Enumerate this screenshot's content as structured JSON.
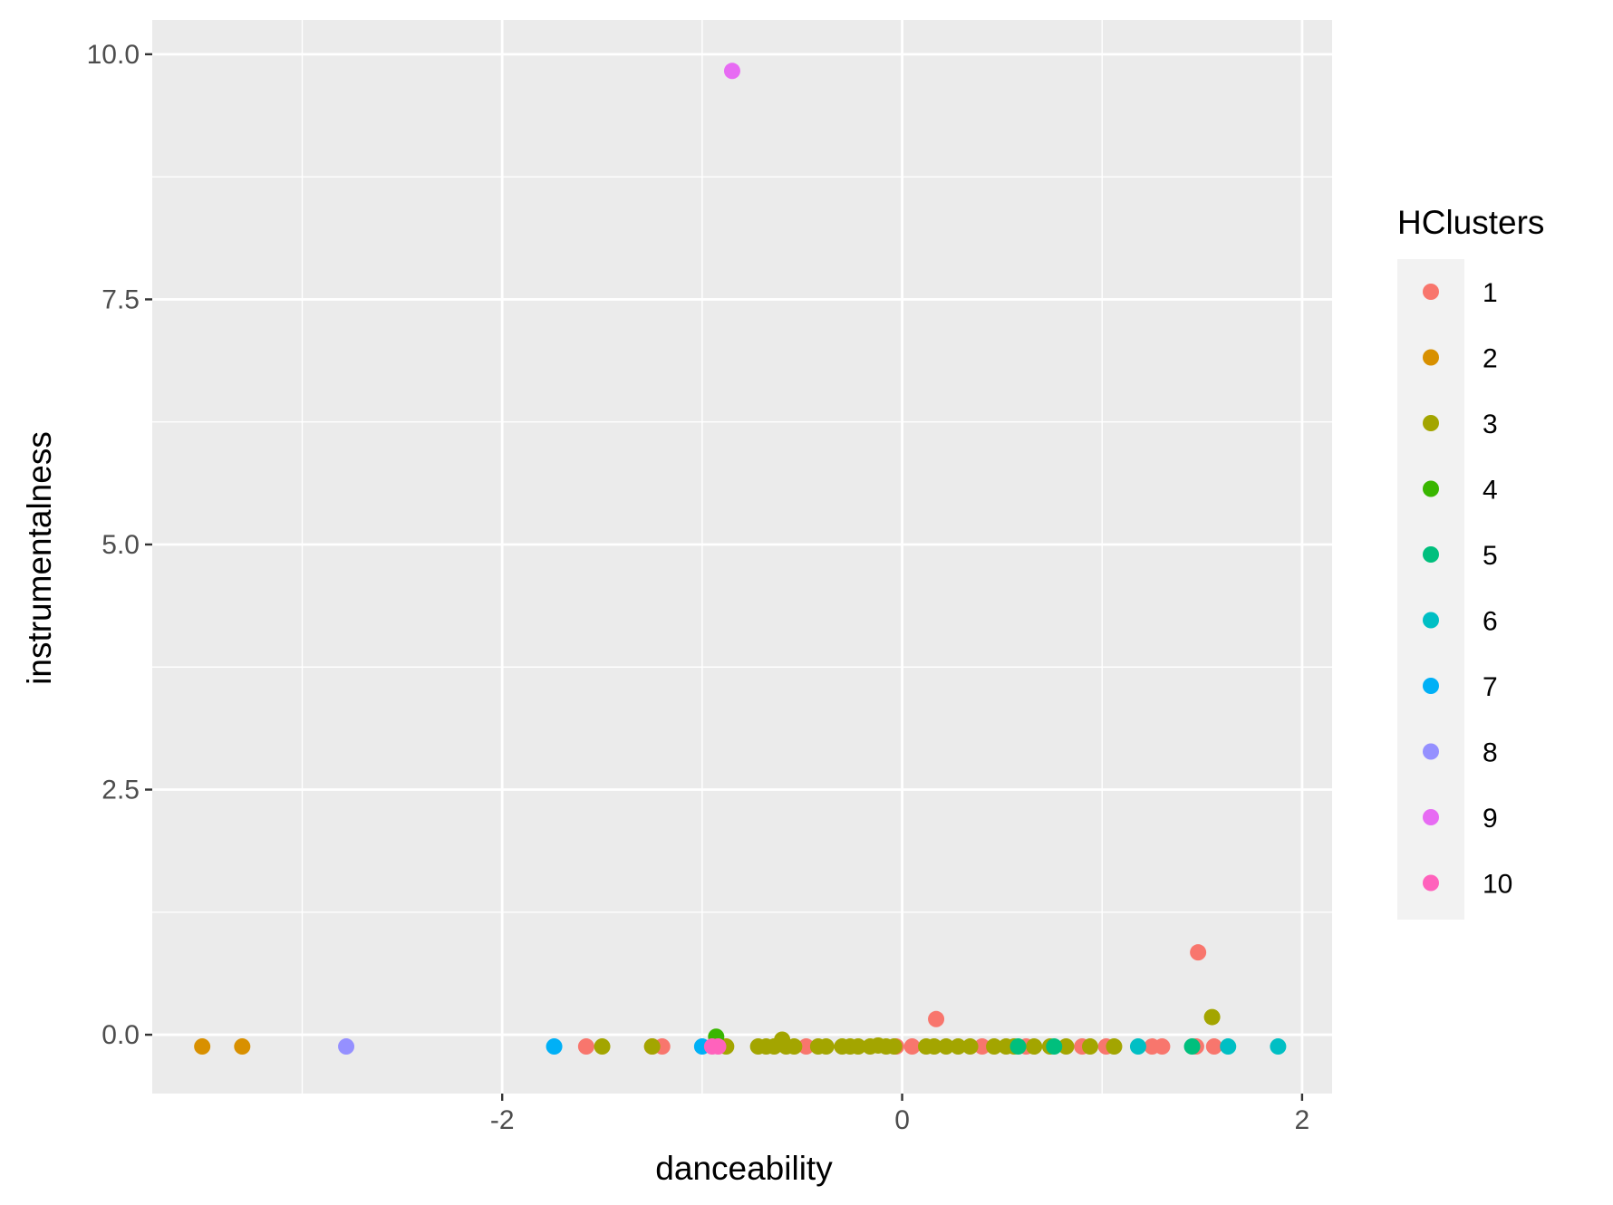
{
  "chart_data": {
    "type": "scatter",
    "title": "",
    "xlabel": "danceability",
    "ylabel": "instrumentalness",
    "xlim": [
      -3.75,
      2.15
    ],
    "ylim": [
      -0.6,
      10.35
    ],
    "xticks": [
      -2,
      0,
      2
    ],
    "xtick_labels": [
      "-2",
      "0",
      "2"
    ],
    "yticks": [
      0,
      2.5,
      5,
      7.5,
      10
    ],
    "ytick_labels": [
      "0.0",
      "2.5",
      "5.0",
      "7.5",
      "10.0"
    ],
    "grid": true,
    "panel_background": "#ebebeb",
    "legend": {
      "title": "HClusters",
      "placement": "right",
      "background": "#f2f2f2",
      "entries": [
        {
          "label": "1",
          "color": "#F8766D"
        },
        {
          "label": "2",
          "color": "#D89000"
        },
        {
          "label": "3",
          "color": "#A3A500"
        },
        {
          "label": "4",
          "color": "#39B600"
        },
        {
          "label": "5",
          "color": "#00BF7D"
        },
        {
          "label": "6",
          "color": "#00BFC4"
        },
        {
          "label": "7",
          "color": "#00B0F6"
        },
        {
          "label": "8",
          "color": "#9590FF"
        },
        {
          "label": "9",
          "color": "#E76BF3"
        },
        {
          "label": "10",
          "color": "#FF62BC"
        }
      ]
    },
    "series": [
      {
        "cluster": "1",
        "color": "#F8766D",
        "points": [
          [
            -1.58,
            -0.12
          ],
          [
            -1.25,
            -0.12
          ],
          [
            -1.2,
            -0.12
          ],
          [
            -0.48,
            -0.12
          ],
          [
            -0.03,
            -0.12
          ],
          [
            0.05,
            -0.12
          ],
          [
            0.17,
            0.16
          ],
          [
            0.4,
            -0.12
          ],
          [
            0.62,
            -0.12
          ],
          [
            0.9,
            -0.12
          ],
          [
            1.02,
            -0.12
          ],
          [
            1.25,
            -0.12
          ],
          [
            1.3,
            -0.12
          ],
          [
            1.47,
            -0.12
          ],
          [
            1.48,
            0.84
          ],
          [
            1.56,
            -0.12
          ]
        ]
      },
      {
        "cluster": "2",
        "color": "#D89000",
        "points": [
          [
            -3.5,
            -0.12
          ],
          [
            -3.3,
            -0.12
          ]
        ]
      },
      {
        "cluster": "3",
        "color": "#A3A500",
        "points": [
          [
            -1.5,
            -0.12
          ],
          [
            -1.25,
            -0.12
          ],
          [
            -0.88,
            -0.12
          ],
          [
            -0.72,
            -0.12
          ],
          [
            -0.68,
            -0.12
          ],
          [
            -0.64,
            -0.12
          ],
          [
            -0.6,
            -0.05
          ],
          [
            -0.58,
            -0.12
          ],
          [
            -0.54,
            -0.12
          ],
          [
            -0.42,
            -0.12
          ],
          [
            -0.38,
            -0.12
          ],
          [
            -0.3,
            -0.12
          ],
          [
            -0.26,
            -0.12
          ],
          [
            -0.22,
            -0.12
          ],
          [
            -0.16,
            -0.12
          ],
          [
            -0.12,
            -0.11
          ],
          [
            -0.08,
            -0.12
          ],
          [
            -0.04,
            -0.12
          ],
          [
            0.12,
            -0.12
          ],
          [
            0.16,
            -0.12
          ],
          [
            0.22,
            -0.12
          ],
          [
            0.28,
            -0.12
          ],
          [
            0.34,
            -0.12
          ],
          [
            0.46,
            -0.12
          ],
          [
            0.52,
            -0.12
          ],
          [
            0.56,
            -0.12
          ],
          [
            0.66,
            -0.12
          ],
          [
            0.74,
            -0.12
          ],
          [
            0.82,
            -0.12
          ],
          [
            0.94,
            -0.12
          ],
          [
            1.06,
            -0.12
          ],
          [
            1.55,
            0.18
          ]
        ]
      },
      {
        "cluster": "4",
        "color": "#39B600",
        "points": [
          [
            -0.93,
            -0.02
          ]
        ]
      },
      {
        "cluster": "5",
        "color": "#00BF7D",
        "points": [
          [
            0.58,
            -0.12
          ],
          [
            0.76,
            -0.12
          ],
          [
            1.45,
            -0.12
          ]
        ]
      },
      {
        "cluster": "6",
        "color": "#00BFC4",
        "points": [
          [
            1.18,
            -0.12
          ],
          [
            1.63,
            -0.12
          ],
          [
            1.88,
            -0.12
          ]
        ]
      },
      {
        "cluster": "7",
        "color": "#00B0F6",
        "points": [
          [
            -1.74,
            -0.12
          ],
          [
            -1.0,
            -0.12
          ]
        ]
      },
      {
        "cluster": "8",
        "color": "#9590FF",
        "points": [
          [
            -2.78,
            -0.12
          ]
        ]
      },
      {
        "cluster": "9",
        "color": "#E76BF3",
        "points": [
          [
            -0.85,
            9.83
          ]
        ]
      },
      {
        "cluster": "10",
        "color": "#FF62BC",
        "points": [
          [
            -0.95,
            -0.12
          ],
          [
            -0.92,
            -0.12
          ]
        ]
      }
    ]
  }
}
